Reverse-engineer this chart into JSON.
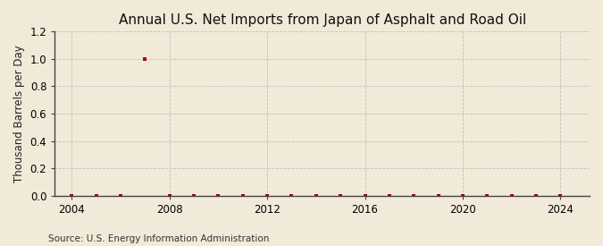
{
  "title": "Annual U.S. Net Imports from Japan of Asphalt and Road Oil",
  "ylabel": "Thousand Barrels per Day",
  "source_text": "Source: U.S. Energy Information Administration",
  "background_color": "#f2ead8",
  "plot_bg_color": "#f2ead8",
  "marker_color": "#aa0000",
  "grid_color": "#bbbbbb",
  "years": [
    2004,
    2005,
    2006,
    2007,
    2008,
    2009,
    2010,
    2011,
    2012,
    2013,
    2014,
    2015,
    2016,
    2017,
    2018,
    2019,
    2020,
    2021,
    2022,
    2023,
    2024
  ],
  "values": [
    0.0,
    0.0,
    0.0,
    1.0,
    0.0,
    0.0,
    0.0,
    0.0,
    0.0,
    0.0,
    0.0,
    0.0,
    0.0,
    0.0,
    0.0,
    0.0,
    0.0,
    0.0,
    0.0,
    0.0,
    0.0
  ],
  "ylim": [
    0.0,
    1.2
  ],
  "yticks": [
    0.0,
    0.2,
    0.4,
    0.6,
    0.8,
    1.0,
    1.2
  ],
  "xlim": [
    2003.3,
    2025.2
  ],
  "xticks": [
    2004,
    2008,
    2012,
    2016,
    2020,
    2024
  ],
  "title_fontsize": 11,
  "label_fontsize": 8.5,
  "tick_fontsize": 8.5,
  "source_fontsize": 7.5
}
